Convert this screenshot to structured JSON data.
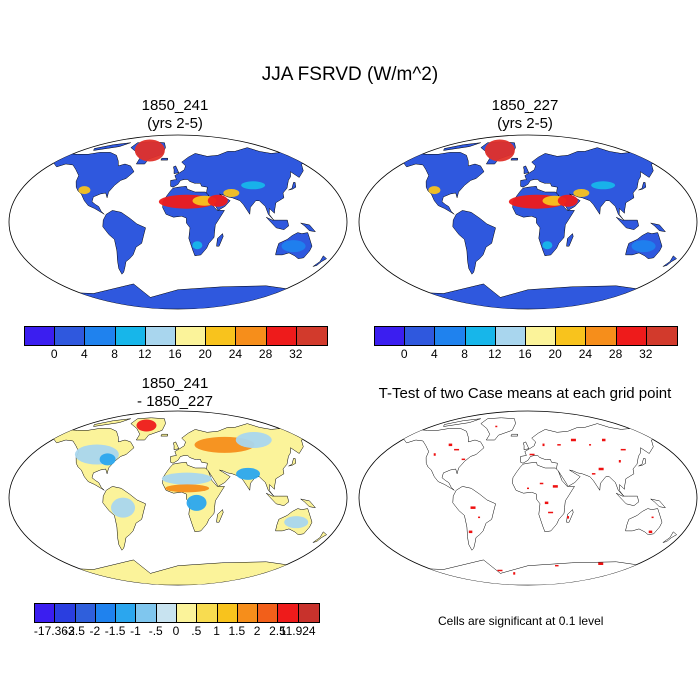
{
  "title": "JJA FSRVD (W/m^2)",
  "panels": {
    "top_left": {
      "title_line1": "1850_241",
      "title_line2": "(yrs 2-5)"
    },
    "top_right": {
      "title_line1": "1850_227",
      "title_line2": "(yrs 2-5)"
    },
    "bottom_left": {
      "title_line1": "1850_241",
      "title_line2": "- 1850_227"
    },
    "bottom_right": {
      "title": "T-Test of two Case means at each grid point",
      "note": "Cells are significant at 0.1 level"
    }
  },
  "colorbar_abs": {
    "colors": [
      "#3b1ef0",
      "#2f58de",
      "#1f82ee",
      "#17b6ea",
      "#a9d6ee",
      "#fbf39a",
      "#f8c31d",
      "#f68e1b",
      "#ee1b1b",
      "#d23a2c"
    ],
    "labels": [
      "0",
      "4",
      "8",
      "12",
      "16",
      "20",
      "24",
      "28",
      "32"
    ]
  },
  "colorbar_diff": {
    "colors": [
      "#3b1ef0",
      "#2a3ee0",
      "#2f5fdc",
      "#1f82ee",
      "#2ba6ee",
      "#7fc6ee",
      "#c8e3f0",
      "#fbf39a",
      "#f8dc50",
      "#f8c31d",
      "#f68e1b",
      "#f25f1a",
      "#ee1b1b",
      "#c8322c"
    ],
    "labels": [
      "-17.363",
      "-2.5",
      "-2",
      "-1.5",
      "-1",
      "-.5",
      "0",
      ".5",
      "1",
      "1.5",
      "2",
      "2.5",
      "11.924"
    ]
  },
  "map_colors": {
    "abs_base": "#2f58de",
    "abs_hot": "#ee1b1b",
    "abs_warm": "#f8c31d",
    "greenland": "#e0302a",
    "diff_base": "#fbf39a",
    "diff_blue": "#2ba6ee",
    "diff_light": "#a9d6ee",
    "diff_red": "#ee1b1b",
    "ttest_sig": "#ee1111"
  }
}
